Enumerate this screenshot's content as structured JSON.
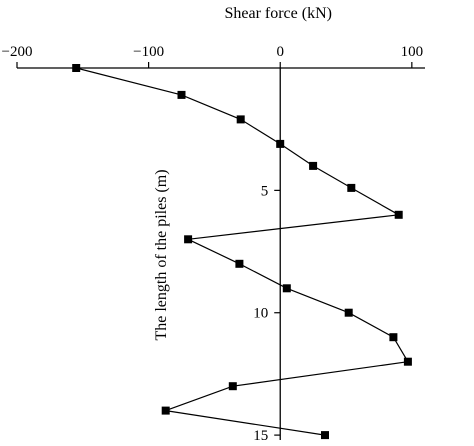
{
  "chart_data": {
    "type": "line",
    "xlabel": "Shear force (kN)",
    "ylabel": "The length of the piles (m)",
    "x_axis_position": "top",
    "y_inverted": true,
    "xlim": [
      -200,
      110
    ],
    "ylim": [
      0,
      15.2
    ],
    "x_ticks": [
      -200,
      -100,
      0,
      100
    ],
    "y_ticks": [
      5,
      10,
      15
    ],
    "x_tick_labels": [
      "−200",
      "−100",
      "0",
      "100"
    ],
    "y_tick_labels": [
      "5",
      "10",
      "15"
    ],
    "grid": false,
    "series": [
      {
        "color": "#000000",
        "marker": "square",
        "points": [
          {
            "x": -155,
            "y": 0.0
          },
          {
            "x": -75,
            "y": 1.1
          },
          {
            "x": -30,
            "y": 2.1
          },
          {
            "x": 0,
            "y": 3.1
          },
          {
            "x": 25,
            "y": 4.0
          },
          {
            "x": 54,
            "y": 4.9
          },
          {
            "x": 90,
            "y": 6.0
          },
          {
            "x": -70,
            "y": 7.0
          },
          {
            "x": -31,
            "y": 8.0
          },
          {
            "x": 5,
            "y": 9.0
          },
          {
            "x": 52,
            "y": 10.0
          },
          {
            "x": 86,
            "y": 11.0
          },
          {
            "x": 97,
            "y": 12.0
          },
          {
            "x": -36,
            "y": 13.0
          },
          {
            "x": -87,
            "y": 14.0
          },
          {
            "x": 34,
            "y": 15.0
          }
        ]
      }
    ]
  }
}
